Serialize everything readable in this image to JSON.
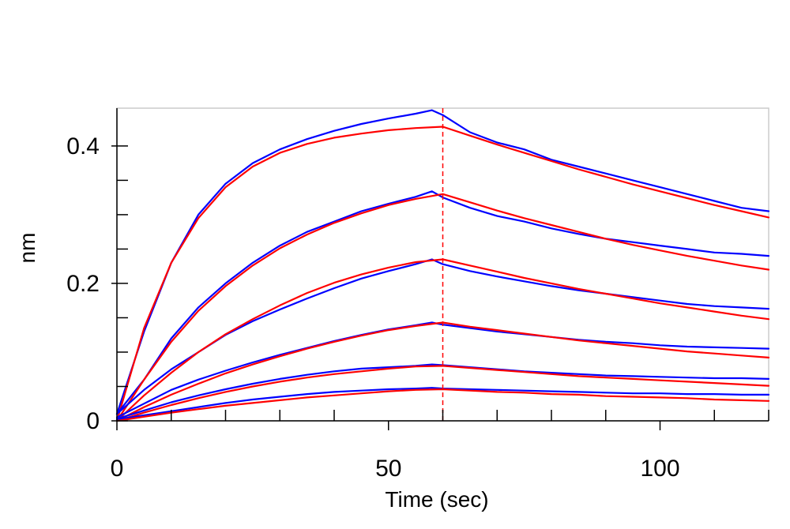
{
  "chart_data": {
    "type": "line",
    "title": "",
    "xlabel": "Time (sec)",
    "ylabel": "nm",
    "xlim": [
      0,
      120
    ],
    "ylim": [
      0,
      0.45
    ],
    "xticks": [
      0,
      50,
      100
    ],
    "yticks": [
      0,
      0.2,
      0.4
    ],
    "x_tick_labels": [
      "0",
      "50",
      "100"
    ],
    "y_tick_labels": [
      "0",
      "0.2",
      "0.4"
    ],
    "association_end_sec": 60,
    "grid": false,
    "legend": "none",
    "colors": {
      "measured": "#0000ff",
      "fit": "#ff0000",
      "marker": "#ff0000",
      "frame": "#cccccc",
      "axis": "#000000"
    },
    "series": [
      {
        "kind": "measured",
        "x": [
          0,
          5,
          10,
          15,
          20,
          25,
          30,
          35,
          40,
          45,
          50,
          55,
          58,
          60,
          65,
          70,
          75,
          80,
          85,
          90,
          95,
          100,
          105,
          110,
          115,
          120
        ],
        "values": [
          0.01,
          0.13,
          0.23,
          0.3,
          0.345,
          0.375,
          0.395,
          0.41,
          0.422,
          0.432,
          0.44,
          0.447,
          0.452,
          0.445,
          0.42,
          0.405,
          0.395,
          0.38,
          0.37,
          0.36,
          0.35,
          0.34,
          0.33,
          0.32,
          0.31,
          0.305
        ]
      },
      {
        "kind": "fit",
        "x": [
          0,
          5,
          10,
          15,
          20,
          25,
          30,
          35,
          40,
          45,
          50,
          55,
          60,
          65,
          70,
          75,
          80,
          85,
          90,
          95,
          100,
          105,
          110,
          115,
          120
        ],
        "values": [
          0.0,
          0.135,
          0.23,
          0.295,
          0.34,
          0.37,
          0.39,
          0.403,
          0.412,
          0.418,
          0.423,
          0.426,
          0.428,
          0.415,
          0.402,
          0.39,
          0.378,
          0.366,
          0.355,
          0.344,
          0.334,
          0.324,
          0.314,
          0.305,
          0.296
        ]
      },
      {
        "kind": "measured",
        "x": [
          0,
          5,
          10,
          15,
          20,
          25,
          30,
          35,
          40,
          45,
          50,
          55,
          58,
          60,
          65,
          70,
          75,
          80,
          85,
          90,
          95,
          100,
          105,
          110,
          115,
          120
        ],
        "values": [
          0.01,
          0.06,
          0.12,
          0.165,
          0.2,
          0.23,
          0.255,
          0.275,
          0.29,
          0.305,
          0.316,
          0.326,
          0.334,
          0.325,
          0.31,
          0.298,
          0.29,
          0.28,
          0.272,
          0.265,
          0.26,
          0.255,
          0.25,
          0.245,
          0.243,
          0.24
        ]
      },
      {
        "kind": "fit",
        "x": [
          0,
          5,
          10,
          15,
          20,
          25,
          30,
          35,
          40,
          45,
          50,
          55,
          60,
          65,
          70,
          75,
          80,
          85,
          90,
          95,
          100,
          105,
          110,
          115,
          120
        ],
        "values": [
          0.0,
          0.06,
          0.115,
          0.16,
          0.196,
          0.226,
          0.251,
          0.271,
          0.288,
          0.302,
          0.314,
          0.323,
          0.33,
          0.318,
          0.306,
          0.295,
          0.285,
          0.275,
          0.265,
          0.256,
          0.248,
          0.24,
          0.233,
          0.226,
          0.22
        ]
      },
      {
        "kind": "measured",
        "x": [
          0,
          5,
          10,
          15,
          20,
          25,
          30,
          35,
          40,
          45,
          50,
          55,
          58,
          60,
          65,
          70,
          75,
          80,
          85,
          90,
          95,
          100,
          105,
          110,
          115,
          120
        ],
        "values": [
          0.01,
          0.045,
          0.075,
          0.1,
          0.125,
          0.145,
          0.162,
          0.178,
          0.193,
          0.207,
          0.218,
          0.228,
          0.235,
          0.228,
          0.218,
          0.21,
          0.203,
          0.196,
          0.19,
          0.185,
          0.18,
          0.175,
          0.17,
          0.167,
          0.165,
          0.163
        ]
      },
      {
        "kind": "fit",
        "x": [
          0,
          5,
          10,
          15,
          20,
          25,
          30,
          35,
          40,
          45,
          50,
          55,
          60,
          65,
          70,
          75,
          80,
          85,
          90,
          95,
          100,
          105,
          110,
          115,
          120
        ],
        "values": [
          0.0,
          0.037,
          0.07,
          0.1,
          0.126,
          0.148,
          0.168,
          0.186,
          0.201,
          0.213,
          0.223,
          0.231,
          0.235,
          0.226,
          0.217,
          0.208,
          0.2,
          0.192,
          0.185,
          0.178,
          0.171,
          0.165,
          0.159,
          0.153,
          0.148
        ]
      },
      {
        "kind": "measured",
        "x": [
          0,
          5,
          10,
          15,
          20,
          25,
          30,
          35,
          40,
          45,
          50,
          55,
          58,
          60,
          65,
          70,
          75,
          80,
          85,
          90,
          95,
          100,
          105,
          110,
          115,
          120
        ],
        "values": [
          0.005,
          0.025,
          0.045,
          0.06,
          0.073,
          0.085,
          0.096,
          0.106,
          0.116,
          0.125,
          0.133,
          0.139,
          0.143,
          0.14,
          0.135,
          0.13,
          0.126,
          0.122,
          0.118,
          0.115,
          0.113,
          0.11,
          0.108,
          0.107,
          0.106,
          0.105
        ]
      },
      {
        "kind": "fit",
        "x": [
          0,
          5,
          10,
          15,
          20,
          25,
          30,
          35,
          40,
          45,
          50,
          55,
          60,
          65,
          70,
          75,
          80,
          85,
          90,
          95,
          100,
          105,
          110,
          115,
          120
        ],
        "values": [
          0.0,
          0.02,
          0.038,
          0.054,
          0.069,
          0.082,
          0.094,
          0.105,
          0.115,
          0.124,
          0.132,
          0.138,
          0.143,
          0.137,
          0.132,
          0.127,
          0.122,
          0.117,
          0.113,
          0.109,
          0.105,
          0.101,
          0.098,
          0.095,
          0.092
        ]
      },
      {
        "kind": "measured",
        "x": [
          0,
          5,
          10,
          15,
          20,
          25,
          30,
          35,
          40,
          45,
          50,
          55,
          58,
          60,
          65,
          70,
          75,
          80,
          85,
          90,
          95,
          100,
          105,
          110,
          115,
          120
        ],
        "values": [
          0.003,
          0.015,
          0.027,
          0.037,
          0.046,
          0.054,
          0.061,
          0.067,
          0.072,
          0.076,
          0.078,
          0.08,
          0.082,
          0.081,
          0.078,
          0.075,
          0.072,
          0.07,
          0.068,
          0.066,
          0.065,
          0.064,
          0.063,
          0.062,
          0.062,
          0.061
        ]
      },
      {
        "kind": "fit",
        "x": [
          0,
          5,
          10,
          15,
          20,
          25,
          30,
          35,
          40,
          45,
          50,
          55,
          60,
          65,
          70,
          75,
          80,
          85,
          90,
          95,
          100,
          105,
          110,
          115,
          120
        ],
        "values": [
          0.0,
          0.012,
          0.023,
          0.033,
          0.042,
          0.05,
          0.057,
          0.063,
          0.068,
          0.072,
          0.076,
          0.079,
          0.08,
          0.077,
          0.074,
          0.071,
          0.068,
          0.065,
          0.063,
          0.061,
          0.059,
          0.057,
          0.055,
          0.053,
          0.051
        ]
      },
      {
        "kind": "measured",
        "x": [
          0,
          5,
          10,
          15,
          20,
          25,
          30,
          35,
          40,
          45,
          50,
          55,
          58,
          60,
          65,
          70,
          75,
          80,
          85,
          90,
          95,
          100,
          105,
          110,
          115,
          120
        ],
        "values": [
          0.002,
          0.008,
          0.014,
          0.02,
          0.026,
          0.031,
          0.035,
          0.039,
          0.042,
          0.044,
          0.046,
          0.047,
          0.048,
          0.047,
          0.046,
          0.045,
          0.044,
          0.043,
          0.042,
          0.041,
          0.04,
          0.04,
          0.039,
          0.039,
          0.038,
          0.038
        ]
      },
      {
        "kind": "fit",
        "x": [
          0,
          5,
          10,
          15,
          20,
          25,
          30,
          35,
          40,
          45,
          50,
          55,
          60,
          65,
          70,
          75,
          80,
          85,
          90,
          95,
          100,
          105,
          110,
          115,
          120
        ],
        "values": [
          0.0,
          0.006,
          0.012,
          0.017,
          0.022,
          0.026,
          0.03,
          0.034,
          0.037,
          0.04,
          0.043,
          0.045,
          0.046,
          0.044,
          0.042,
          0.041,
          0.039,
          0.038,
          0.036,
          0.035,
          0.034,
          0.033,
          0.031,
          0.03,
          0.029
        ]
      }
    ]
  }
}
